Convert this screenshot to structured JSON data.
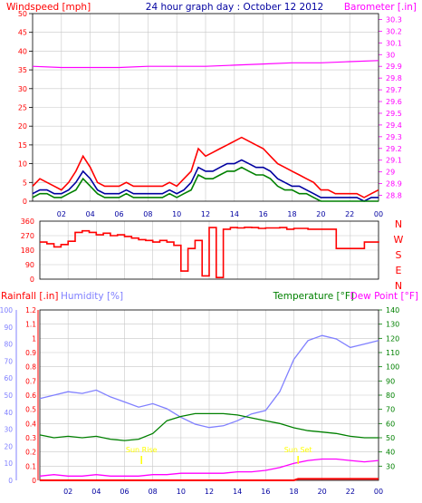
{
  "chart_data": [
    {
      "type": "line",
      "title": "24 hour graph day : October 12 2012",
      "ylabel_left": "Windspeed [mph]",
      "ylabel_right": "Barometer [.in]",
      "x_ticks": [
        "02",
        "04",
        "06",
        "08",
        "10",
        "12",
        "14",
        "16",
        "18",
        "20",
        "22",
        "00"
      ],
      "y_ticks_left": [
        0,
        5,
        10,
        15,
        20,
        25,
        30,
        35,
        40,
        45,
        50
      ],
      "y_ticks_right": [
        "28.8",
        "28.9",
        "29",
        "29.1",
        "29.2",
        "29.3",
        "29.4",
        "29.5",
        "29.6",
        "29.7",
        "29.8",
        "29.9",
        "30",
        "30.1",
        "30.2",
        "30.3"
      ],
      "ylim_left": [
        0,
        50
      ],
      "ylim_right": [
        28.75,
        30.35
      ],
      "xlim_hours": [
        0,
        24
      ],
      "grid": true,
      "series": [
        {
          "name": "Gust",
          "axis": "left",
          "color": "#ff0000",
          "x": [
            0,
            0.5,
            1,
            1.5,
            2,
            2.5,
            3,
            3.5,
            4,
            4.5,
            5,
            5.5,
            6,
            6.5,
            7,
            7.5,
            8,
            8.5,
            9,
            9.5,
            10,
            10.5,
            11,
            11.5,
            12,
            12.5,
            13,
            13.5,
            14,
            14.5,
            15,
            15.5,
            16,
            16.5,
            17,
            17.5,
            18,
            18.5,
            19,
            19.5,
            20,
            20.5,
            21,
            21.5,
            22,
            22.5,
            23,
            23.5,
            24
          ],
          "values": [
            4,
            6,
            5,
            4,
            3,
            5,
            8,
            12,
            9,
            5,
            4,
            4,
            4,
            5,
            4,
            4,
            4,
            4,
            4,
            5,
            4,
            6,
            8,
            14,
            12,
            13,
            14,
            15,
            16,
            17,
            16,
            15,
            14,
            12,
            10,
            9,
            8,
            7,
            6,
            5,
            3,
            3,
            2,
            2,
            2,
            2,
            1,
            2,
            3
          ]
        },
        {
          "name": "Average",
          "axis": "left",
          "color": "#0000a0",
          "x": [
            0,
            0.5,
            1,
            1.5,
            2,
            2.5,
            3,
            3.5,
            4,
            4.5,
            5,
            5.5,
            6,
            6.5,
            7,
            7.5,
            8,
            8.5,
            9,
            9.5,
            10,
            10.5,
            11,
            11.5,
            12,
            12.5,
            13,
            13.5,
            14,
            14.5,
            15,
            15.5,
            16,
            16.5,
            17,
            17.5,
            18,
            18.5,
            19,
            19.5,
            20,
            20.5,
            21,
            21.5,
            22,
            22.5,
            23,
            23.5,
            24
          ],
          "values": [
            2,
            3,
            3,
            2,
            2,
            3,
            5,
            8,
            6,
            3,
            2,
            2,
            2,
            3,
            2,
            2,
            2,
            2,
            2,
            3,
            2,
            3,
            5,
            9,
            8,
            8,
            9,
            10,
            10,
            11,
            10,
            9,
            9,
            8,
            6,
            5,
            4,
            4,
            3,
            2,
            1,
            1,
            1,
            1,
            1,
            1,
            0,
            1,
            1
          ]
        },
        {
          "name": "Wind speed",
          "axis": "left",
          "color": "#008000",
          "x": [
            0,
            0.5,
            1,
            1.5,
            2,
            2.5,
            3,
            3.5,
            4,
            4.5,
            5,
            5.5,
            6,
            6.5,
            7,
            7.5,
            8,
            8.5,
            9,
            9.5,
            10,
            10.5,
            11,
            11.5,
            12,
            12.5,
            13,
            13.5,
            14,
            14.5,
            15,
            15.5,
            16,
            16.5,
            17,
            17.5,
            18,
            18.5,
            19,
            19.5,
            20,
            20.5,
            21,
            21.5,
            22,
            22.5,
            23,
            23.5,
            24
          ],
          "values": [
            1,
            2,
            2,
            1,
            1,
            2,
            3,
            6,
            4,
            2,
            1,
            1,
            1,
            2,
            1,
            1,
            1,
            1,
            1,
            2,
            1,
            2,
            3,
            7,
            6,
            6,
            7,
            8,
            8,
            9,
            8,
            7,
            7,
            6,
            4,
            3,
            3,
            2,
            2,
            1,
            0,
            0,
            0,
            0,
            0,
            0,
            0,
            0,
            0
          ]
        },
        {
          "name": "Barometer",
          "axis": "right",
          "color": "#ff00ff",
          "x": [
            0,
            2,
            4,
            6,
            8,
            10,
            12,
            14,
            16,
            18,
            20,
            22,
            24
          ],
          "values": [
            29.9,
            29.89,
            29.89,
            29.89,
            29.9,
            29.9,
            29.9,
            29.91,
            29.92,
            29.93,
            29.93,
            29.94,
            29.95
          ]
        }
      ]
    },
    {
      "type": "line",
      "title": "",
      "ylabel_right": [
        "N",
        "W",
        "S",
        "E",
        "N"
      ],
      "x_ticks": [
        "02",
        "04",
        "06",
        "08",
        "10",
        "12",
        "14",
        "16",
        "18",
        "20",
        "22",
        "00"
      ],
      "y_ticks_left": [
        0,
        90,
        180,
        270,
        360
      ],
      "ylim": [
        0,
        360
      ],
      "xlim_hours": [
        0,
        24
      ],
      "grid": true,
      "series": [
        {
          "name": "Wind direction",
          "color": "#ff0000",
          "x": [
            0,
            0.5,
            1,
            1.5,
            2,
            2.5,
            3,
            3.5,
            4,
            4.5,
            5,
            5.5,
            6,
            6.5,
            7,
            7.5,
            8,
            8.5,
            9,
            9.5,
            10,
            10.5,
            11,
            11.5,
            12,
            12.5,
            13,
            13.5,
            14,
            14.5,
            15,
            15.5,
            16,
            16.5,
            17,
            17.5,
            18,
            18.5,
            19,
            19.5,
            20,
            20.5,
            21,
            21.5,
            22,
            22.5,
            23,
            23.5,
            24
          ],
          "values": [
            230,
            220,
            200,
            215,
            235,
            290,
            300,
            290,
            275,
            285,
            270,
            275,
            265,
            255,
            245,
            240,
            230,
            240,
            230,
            210,
            50,
            190,
            240,
            20,
            320,
            10,
            310,
            320,
            318,
            322,
            320,
            315,
            318,
            318,
            320,
            310,
            315,
            315,
            310,
            310,
            310,
            310,
            190,
            190,
            190,
            190,
            230,
            230,
            235
          ]
        }
      ]
    },
    {
      "type": "line",
      "title": "",
      "ylabel_left": "Rainfall [.in]",
      "ylabel_left_2": "Humidity [%]",
      "ylabel_right": "Temperature [°F]",
      "ylabel_right_2": "Dew Point [°F]",
      "x_ticks": [
        "02",
        "04",
        "06",
        "08",
        "10",
        "12",
        "14",
        "16",
        "18",
        "20",
        "22",
        "00"
      ],
      "y_ticks_rain": [
        "0",
        "0.1",
        "0.2",
        "0.3",
        "0.4",
        "0.5",
        "0.6",
        "0.7",
        "0.8",
        "0.9",
        "1",
        "1.1",
        "1.2"
      ],
      "y_ticks_humidity": [
        0,
        10,
        20,
        30,
        40,
        50,
        60,
        70,
        80,
        90,
        100
      ],
      "y_ticks_temp": [
        30,
        40,
        50,
        60,
        70,
        80,
        90,
        100,
        110,
        120,
        130,
        140
      ],
      "ylim_rain": [
        0,
        1.2
      ],
      "ylim_humidity": [
        0,
        100
      ],
      "ylim_temp": [
        20,
        140
      ],
      "xlim_hours": [
        0,
        24
      ],
      "grid": true,
      "annotations": [
        {
          "text": "Sun Rise",
          "x_hour": 7.2
        },
        {
          "text": "Sun Set",
          "x_hour": 18.3
        }
      ],
      "series": [
        {
          "name": "Humidity",
          "axis": "humidity",
          "color": "#8080ff",
          "x": [
            0,
            1,
            2,
            3,
            4,
            5,
            6,
            7,
            8,
            9,
            10,
            11,
            12,
            13,
            14,
            15,
            16,
            17,
            18,
            19,
            20,
            21,
            22,
            23,
            24
          ],
          "values": [
            48,
            50,
            52,
            51,
            53,
            49,
            46,
            43,
            45,
            42,
            37,
            33,
            31,
            32,
            35,
            39,
            41,
            52,
            71,
            82,
            85,
            83,
            78,
            80,
            82
          ]
        },
        {
          "name": "Temperature",
          "axis": "temp",
          "color": "#008000",
          "x": [
            0,
            1,
            2,
            3,
            4,
            5,
            6,
            7,
            8,
            9,
            10,
            11,
            12,
            13,
            14,
            15,
            16,
            17,
            18,
            19,
            20,
            21,
            22,
            23,
            24
          ],
          "values": [
            52,
            50,
            51,
            50,
            51,
            49,
            48,
            49,
            53,
            62,
            65,
            67,
            67,
            67,
            66,
            64,
            62,
            60,
            57,
            55,
            54,
            53,
            51,
            50,
            50
          ]
        },
        {
          "name": "Dew Point",
          "axis": "temp",
          "color": "#ff00ff",
          "x": [
            0,
            1,
            2,
            3,
            4,
            5,
            6,
            7,
            8,
            9,
            10,
            11,
            12,
            13,
            14,
            15,
            16,
            17,
            18,
            19,
            20,
            21,
            22,
            23,
            24
          ],
          "values": [
            23,
            24,
            23,
            23,
            24,
            23,
            23,
            23,
            24,
            24,
            25,
            25,
            25,
            25,
            26,
            26,
            27,
            29,
            32,
            34,
            35,
            35,
            34,
            33,
            34
          ]
        },
        {
          "name": "Rainfall",
          "axis": "rain",
          "color": "#ff0000",
          "x": [
            0,
            18,
            18.3,
            24
          ],
          "values": [
            0,
            0,
            0.01,
            0.01
          ]
        }
      ]
    }
  ],
  "labels": {
    "windspeed": "Windspeed [mph]",
    "title": "24 hour graph day : October 12 2012",
    "barometer": "Barometer [.in]",
    "compass": [
      "N",
      "W",
      "S",
      "E",
      "N"
    ],
    "rainfall": "Rainfall [.in]",
    "humidity": "Humidity [%]",
    "temperature": "Temperature [°F]",
    "dewpoint": "Dew Point [°F]"
  },
  "colors": {
    "windspeed_label": "#ff0000",
    "title": "#0000a0",
    "barometer": "#ff00ff",
    "gust": "#ff0000",
    "average": "#0000a0",
    "speed": "#008000",
    "direction": "#ff0000",
    "humidity": "#8080ff",
    "temperature": "#008000",
    "dewpoint": "#ff00ff",
    "rainfall": "#ff0000",
    "sun_marker": "#ffff00",
    "grid": "#c8c8c8"
  }
}
